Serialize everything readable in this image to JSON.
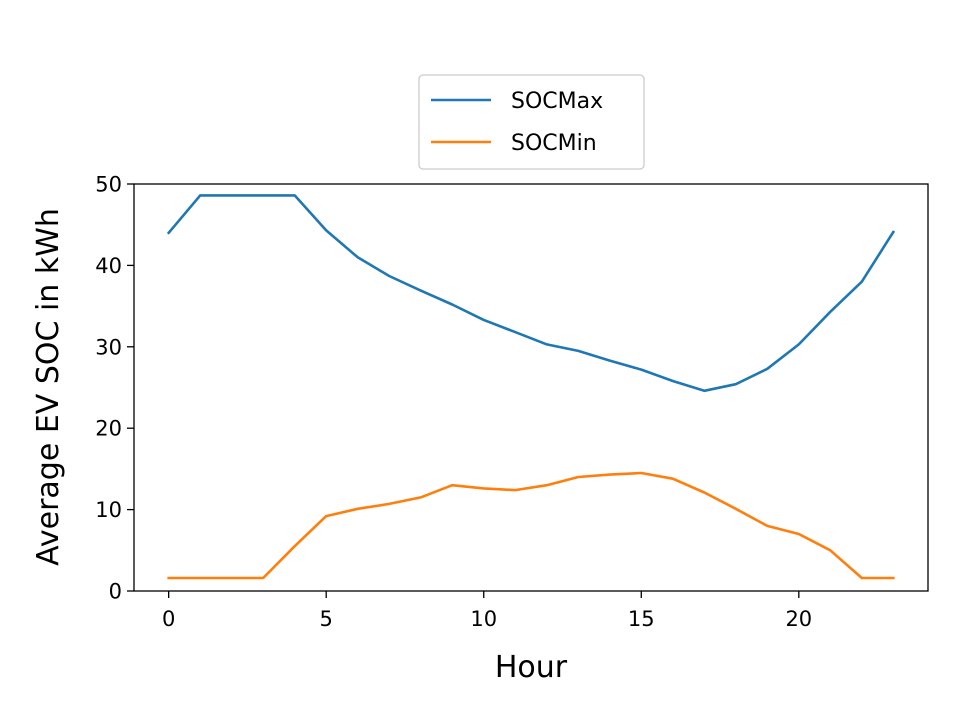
{
  "chart_data": {
    "type": "line",
    "title": "",
    "xlabel": "Hour",
    "ylabel": "Average EV SOC in kWh",
    "xlim": [
      -1.1,
      24.1
    ],
    "ylim": [
      0,
      50
    ],
    "xticks": [
      0,
      5,
      10,
      15,
      20
    ],
    "yticks": [
      0,
      10,
      20,
      30,
      40,
      50
    ],
    "grid": false,
    "legend": "upper center, outside above axes",
    "x": [
      0,
      1,
      2,
      3,
      4,
      5,
      6,
      7,
      8,
      9,
      10,
      11,
      12,
      13,
      14,
      15,
      16,
      17,
      18,
      19,
      20,
      21,
      22,
      23
    ],
    "series": [
      {
        "name": "SOCMax",
        "color": "#1f77b4",
        "values": [
          44.0,
          48.6,
          48.6,
          48.6,
          48.6,
          44.3,
          41.0,
          38.7,
          36.9,
          35.2,
          33.3,
          31.8,
          30.3,
          29.5,
          28.3,
          27.2,
          25.8,
          24.6,
          25.4,
          27.3,
          30.3,
          34.3,
          38.0,
          44.1
        ]
      },
      {
        "name": "SOCMin",
        "color": "#ff7f0e",
        "values": [
          1.6,
          1.6,
          1.6,
          1.6,
          5.5,
          9.2,
          10.1,
          10.7,
          11.5,
          13.0,
          12.6,
          12.4,
          13.0,
          14.0,
          14.3,
          14.5,
          13.8,
          12.1,
          10.1,
          8.0,
          7.0,
          5.0,
          1.6,
          1.6
        ]
      }
    ]
  }
}
